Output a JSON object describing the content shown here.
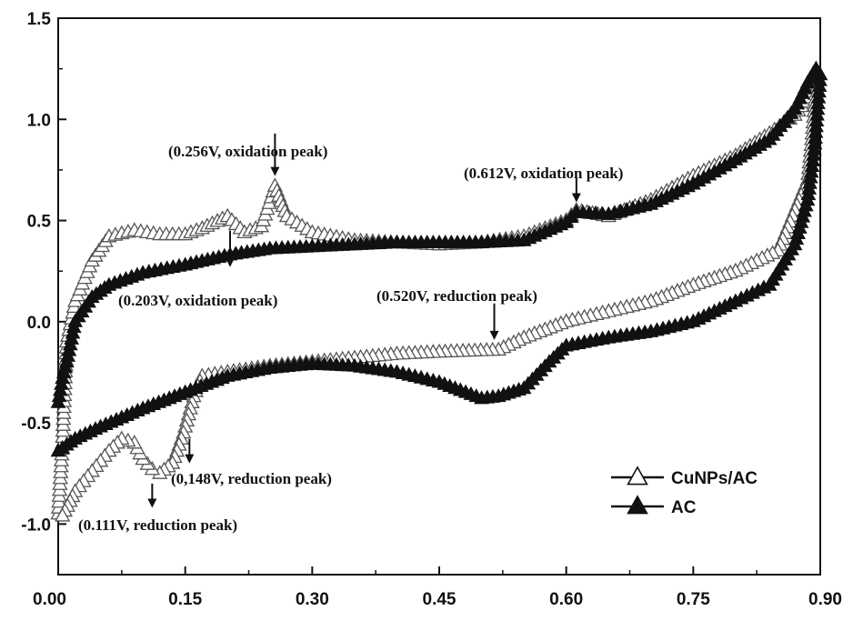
{
  "chart_data": {
    "type": "line",
    "xlabel": "",
    "ylabel": "",
    "xlim": [
      0.0,
      0.9
    ],
    "ylim": [
      -1.25,
      1.5
    ],
    "x_ticks": [
      "0.00",
      "0.15",
      "0.30",
      "0.45",
      "0.60",
      "0.75",
      "0.90"
    ],
    "y_ticks": [
      "1.5",
      "1.0",
      "0.5",
      "0.0",
      "-0.5",
      "-1.0"
    ],
    "grid": false,
    "legend_position": "bottom-right",
    "series": [
      {
        "name": "CuNPs/AC",
        "marker": "open-triangle",
        "points": [
          [
            0.0,
            -0.95
          ],
          [
            0.005,
            -0.6
          ],
          [
            0.01,
            -0.1
          ],
          [
            0.02,
            0.1
          ],
          [
            0.04,
            0.3
          ],
          [
            0.06,
            0.42
          ],
          [
            0.09,
            0.45
          ],
          [
            0.12,
            0.43
          ],
          [
            0.15,
            0.43
          ],
          [
            0.17,
            0.46
          ],
          [
            0.2,
            0.52
          ],
          [
            0.22,
            0.44
          ],
          [
            0.24,
            0.47
          ],
          [
            0.256,
            0.67
          ],
          [
            0.27,
            0.52
          ],
          [
            0.3,
            0.44
          ],
          [
            0.35,
            0.4
          ],
          [
            0.4,
            0.39
          ],
          [
            0.45,
            0.38
          ],
          [
            0.5,
            0.39
          ],
          [
            0.55,
            0.42
          ],
          [
            0.6,
            0.5
          ],
          [
            0.612,
            0.55
          ],
          [
            0.65,
            0.52
          ],
          [
            0.7,
            0.6
          ],
          [
            0.75,
            0.72
          ],
          [
            0.8,
            0.82
          ],
          [
            0.84,
            0.93
          ],
          [
            0.87,
            1.02
          ],
          [
            0.895,
            1.15
          ],
          [
            0.89,
            0.9
          ],
          [
            0.885,
            0.7
          ],
          [
            0.87,
            0.55
          ],
          [
            0.85,
            0.35
          ],
          [
            0.8,
            0.25
          ],
          [
            0.75,
            0.18
          ],
          [
            0.7,
            0.1
          ],
          [
            0.65,
            0.05
          ],
          [
            0.6,
            0.0
          ],
          [
            0.55,
            -0.08
          ],
          [
            0.52,
            -0.14
          ],
          [
            0.45,
            -0.15
          ],
          [
            0.4,
            -0.16
          ],
          [
            0.35,
            -0.18
          ],
          [
            0.3,
            -0.2
          ],
          [
            0.25,
            -0.22
          ],
          [
            0.2,
            -0.25
          ],
          [
            0.17,
            -0.27
          ],
          [
            0.16,
            -0.37
          ],
          [
            0.148,
            -0.55
          ],
          [
            0.135,
            -0.7
          ],
          [
            0.12,
            -0.75
          ],
          [
            0.111,
            -0.73
          ],
          [
            0.1,
            -0.68
          ],
          [
            0.09,
            -0.6
          ],
          [
            0.075,
            -0.58
          ],
          [
            0.06,
            -0.64
          ],
          [
            0.04,
            -0.74
          ],
          [
            0.02,
            -0.84
          ],
          [
            0.005,
            -0.96
          ]
        ]
      },
      {
        "name": "AC",
        "marker": "filled-triangle",
        "points": [
          [
            0.0,
            -0.4
          ],
          [
            0.005,
            -0.28
          ],
          [
            0.01,
            -0.2
          ],
          [
            0.02,
            0.0
          ],
          [
            0.04,
            0.12
          ],
          [
            0.06,
            0.18
          ],
          [
            0.1,
            0.24
          ],
          [
            0.15,
            0.28
          ],
          [
            0.203,
            0.33
          ],
          [
            0.25,
            0.36
          ],
          [
            0.3,
            0.37
          ],
          [
            0.35,
            0.38
          ],
          [
            0.4,
            0.39
          ],
          [
            0.45,
            0.39
          ],
          [
            0.5,
            0.39
          ],
          [
            0.55,
            0.4
          ],
          [
            0.6,
            0.49
          ],
          [
            0.612,
            0.54
          ],
          [
            0.65,
            0.53
          ],
          [
            0.7,
            0.58
          ],
          [
            0.75,
            0.68
          ],
          [
            0.8,
            0.8
          ],
          [
            0.84,
            0.9
          ],
          [
            0.87,
            1.05
          ],
          [
            0.885,
            1.18
          ],
          [
            0.895,
            1.25
          ],
          [
            0.9,
            1.22
          ],
          [
            0.893,
            0.85
          ],
          [
            0.885,
            0.6
          ],
          [
            0.87,
            0.38
          ],
          [
            0.84,
            0.18
          ],
          [
            0.8,
            0.1
          ],
          [
            0.75,
            0.0
          ],
          [
            0.7,
            -0.05
          ],
          [
            0.65,
            -0.08
          ],
          [
            0.6,
            -0.12
          ],
          [
            0.58,
            -0.2
          ],
          [
            0.55,
            -0.33
          ],
          [
            0.52,
            -0.37
          ],
          [
            0.5,
            -0.38
          ],
          [
            0.45,
            -0.3
          ],
          [
            0.4,
            -0.25
          ],
          [
            0.35,
            -0.22
          ],
          [
            0.3,
            -0.21
          ],
          [
            0.25,
            -0.23
          ],
          [
            0.2,
            -0.27
          ],
          [
            0.15,
            -0.35
          ],
          [
            0.1,
            -0.43
          ],
          [
            0.05,
            -0.52
          ],
          [
            0.02,
            -0.58
          ],
          [
            0.0,
            -0.64
          ]
        ]
      }
    ],
    "annotations": [
      {
        "text": "(0.256V, oxidation peak)",
        "arrow_to": [
          0.256,
          0.72
        ]
      },
      {
        "text": "(0.612V, oxidation peak)",
        "arrow_to": [
          0.612,
          0.59
        ]
      },
      {
        "text": "(0.203V, oxidation peak)",
        "arrow_to": [
          0.203,
          0.27
        ]
      },
      {
        "text": "(0.520V, reduction peak)",
        "arrow_to": [
          0.515,
          -0.09
        ]
      },
      {
        "text": "(0,148V, reduction peak)",
        "arrow_to": [
          0.155,
          -0.7
        ]
      },
      {
        "text": "(0.111V, reduction peak)",
        "arrow_to": [
          0.111,
          -0.92
        ]
      }
    ]
  }
}
